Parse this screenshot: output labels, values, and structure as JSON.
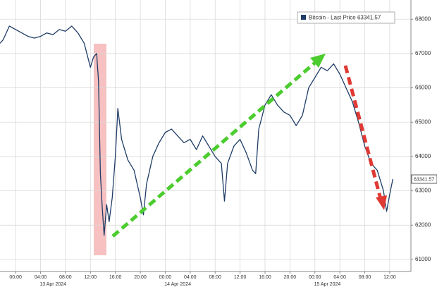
{
  "chart_data": {
    "type": "line",
    "x": [
      -2.5,
      -2,
      -1,
      0,
      1,
      2,
      3,
      4,
      5,
      6,
      7,
      8,
      9,
      10,
      11,
      12,
      12.5,
      13,
      13.3,
      13.6,
      13.9,
      14.2,
      14.6,
      15,
      15.5,
      16,
      16.4,
      17,
      18,
      19,
      20,
      20.5,
      21,
      22,
      23,
      24,
      25,
      26,
      27,
      28,
      29,
      30,
      31,
      32,
      33,
      33.5,
      34,
      35,
      36,
      37,
      38,
      38.5,
      39,
      40,
      41,
      42,
      43,
      44,
      45,
      46,
      47,
      48,
      49,
      50,
      51,
      52,
      53,
      54,
      55,
      56,
      57,
      58,
      59,
      59.5,
      60,
      60.5
    ],
    "series": [
      {
        "name": "Bitcoin - Last Price",
        "color": "#1f3d66",
        "values": [
          67300,
          67400,
          67800,
          67700,
          67600,
          67500,
          67450,
          67500,
          67600,
          67550,
          67700,
          67650,
          67800,
          67600,
          67300,
          66600,
          66900,
          67000,
          66200,
          63500,
          62500,
          61700,
          62600,
          62100,
          62800,
          64000,
          65400,
          64500,
          63900,
          63600,
          62800,
          62300,
          63200,
          64000,
          64400,
          64700,
          64800,
          64600,
          64400,
          64500,
          64200,
          64600,
          64300,
          64000,
          63800,
          62700,
          63800,
          64300,
          64500,
          64100,
          63600,
          63500,
          64800,
          65500,
          65800,
          65500,
          65300,
          65200,
          64900,
          65200,
          66000,
          66300,
          66600,
          66500,
          66700,
          66400,
          66000,
          65600,
          65000,
          64300,
          63800,
          63600,
          63000,
          62400,
          62900,
          63341.57
        ]
      }
    ],
    "xlim": [
      -2.5,
      63.4
    ],
    "xticks": [
      {
        "value": 0,
        "label": "00:00"
      },
      {
        "value": 4,
        "label": "04:00"
      },
      {
        "value": 8,
        "label": "08:00"
      },
      {
        "value": 12,
        "label": "12:00"
      },
      {
        "value": 16,
        "label": "16:00"
      },
      {
        "value": 20,
        "label": "20:00"
      },
      {
        "value": 24,
        "label": "00:00"
      },
      {
        "value": 28,
        "label": "04:00"
      },
      {
        "value": 32,
        "label": "08:00"
      },
      {
        "value": 36,
        "label": "12:00"
      },
      {
        "value": 40,
        "label": "16:00"
      },
      {
        "value": 44,
        "label": "20:00"
      },
      {
        "value": 48,
        "label": "00:00"
      },
      {
        "value": 52,
        "label": "04:00"
      },
      {
        "value": 56,
        "label": "08:00"
      },
      {
        "value": 60,
        "label": "12:00"
      }
    ],
    "date_labels": [
      {
        "value": 6,
        "label": "13 Apr 2024"
      },
      {
        "value": 26,
        "label": "14 Apr 2024"
      },
      {
        "value": 50,
        "label": "15 Apr 2024"
      }
    ],
    "ylim": [
      60650,
      68560
    ],
    "yticks": [
      61000,
      62000,
      63000,
      64000,
      65000,
      66000,
      67000,
      68000
    ],
    "grid": true
  }
}
